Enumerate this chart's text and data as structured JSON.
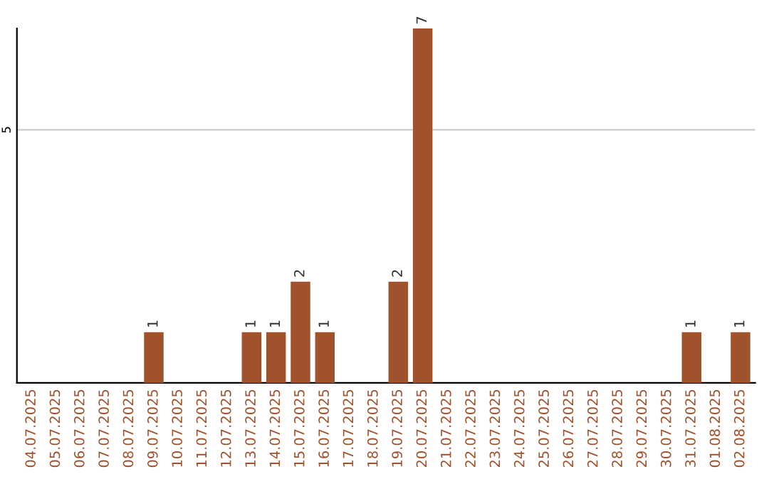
{
  "chart_data": {
    "type": "bar",
    "categories": [
      "04.07.2025",
      "05.07.2025",
      "06.07.2025",
      "07.07.2025",
      "08.07.2025",
      "09.07.2025",
      "10.07.2025",
      "11.07.2025",
      "12.07.2025",
      "13.07.2025",
      "14.07.2025",
      "15.07.2025",
      "16.07.2025",
      "17.07.2025",
      "18.07.2025",
      "19.07.2025",
      "20.07.2025",
      "21.07.2025",
      "22.07.2025",
      "23.07.2025",
      "24.07.2025",
      "25.07.2025",
      "26.07.2025",
      "27.07.2025",
      "28.07.2025",
      "29.07.2025",
      "30.07.2025",
      "31.07.2025",
      "01.08.2025",
      "02.08.2025"
    ],
    "values": [
      0,
      0,
      0,
      0,
      0,
      1,
      0,
      0,
      0,
      1,
      1,
      2,
      1,
      0,
      0,
      2,
      7,
      0,
      0,
      0,
      0,
      0,
      0,
      0,
      0,
      0,
      0,
      1,
      0,
      1
    ],
    "value_labels": [
      null,
      null,
      null,
      null,
      null,
      "1",
      null,
      null,
      null,
      "1",
      "1",
      "2",
      "1",
      null,
      null,
      "2",
      "7",
      null,
      null,
      null,
      null,
      null,
      null,
      null,
      null,
      null,
      null,
      "1",
      null,
      "1"
    ],
    "color": "#a0522d",
    "ylim": [
      0,
      7
    ],
    "yticks": [
      5
    ],
    "grid": "y"
  }
}
